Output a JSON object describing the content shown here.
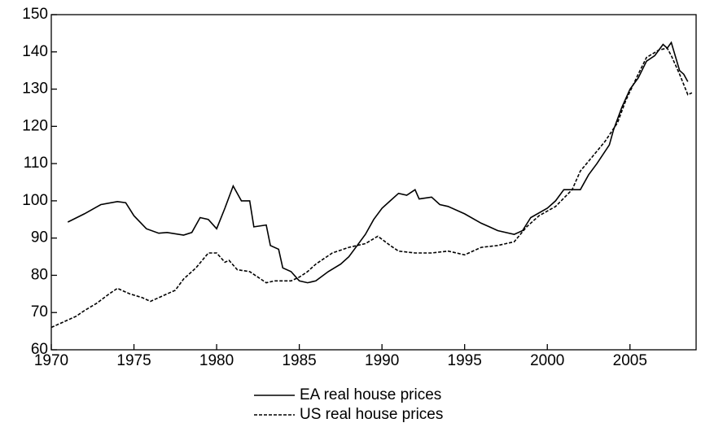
{
  "chart_data": {
    "type": "line",
    "xlim": [
      1970,
      2009
    ],
    "xticks": [
      1970,
      1975,
      1980,
      1985,
      1990,
      1995,
      2000,
      2005
    ],
    "ylim": [
      60,
      150
    ],
    "yticks": [
      60,
      70,
      80,
      90,
      100,
      110,
      120,
      130,
      140,
      150
    ],
    "grid": false,
    "legend": "bottom",
    "series": [
      {
        "name": "EA real house prices",
        "color": "#000000",
        "line_style": "solid",
        "x": [
          1971,
          1972,
          1973,
          1974,
          1974.5,
          1975,
          1975.75,
          1976.5,
          1977,
          1978,
          1978.5,
          1979,
          1979.5,
          1980,
          1980.5,
          1981,
          1981.5,
          1982,
          1982.25,
          1983,
          1983.25,
          1983.75,
          1984,
          1984.5,
          1985,
          1985.5,
          1986,
          1986.75,
          1987.5,
          1988,
          1988.5,
          1989,
          1989.5,
          1990,
          1990.5,
          1991,
          1991.5,
          1992,
          1992.25,
          1993,
          1993.5,
          1994,
          1995,
          1996,
          1996.5,
          1997,
          1998,
          1998.5,
          1999,
          2000,
          2000.5,
          2001,
          2002,
          2002.5,
          2003,
          2003.75,
          2004,
          2004.5,
          2005,
          2005.5,
          2006,
          2006.5,
          2007,
          2007.25,
          2007.5,
          2008,
          2008.25,
          2008.5
        ],
        "values": [
          94.3,
          96.5,
          99,
          99.8,
          99.5,
          96,
          92.5,
          91.3,
          91.5,
          90.8,
          91.5,
          95.5,
          95,
          92.5,
          98,
          104,
          100,
          100,
          93,
          93.5,
          88,
          87,
          82,
          81,
          78.5,
          78,
          78.5,
          81,
          83,
          85,
          88,
          91,
          95,
          98,
          100,
          102,
          101.5,
          103,
          100.5,
          101,
          99,
          98.5,
          96.5,
          94,
          93,
          92,
          91,
          92,
          95.5,
          98,
          100,
          103,
          103,
          107,
          110,
          115,
          119,
          125,
          130,
          133,
          137.5,
          139,
          142,
          141,
          142.5,
          135,
          134,
          132
        ]
      },
      {
        "name": "US real house prices",
        "color": "#000000",
        "line_style": "dashed",
        "x": [
          1970,
          1970.75,
          1971.5,
          1972,
          1972.75,
          1973.5,
          1974,
          1974.75,
          1975.5,
          1976,
          1976.75,
          1977.5,
          1978,
          1978.75,
          1979.5,
          1980,
          1980.5,
          1980.75,
          1981.25,
          1982,
          1982.5,
          1983,
          1983.5,
          1984.5,
          1985,
          1985.5,
          1986,
          1987,
          1988,
          1989,
          1989.75,
          1990.5,
          1991,
          1992,
          1993,
          1994,
          1995,
          1996,
          1997,
          1998,
          1998.75,
          1999.5,
          2000.5,
          2001.5,
          2002,
          2002.75,
          2003.5,
          2004.25,
          2004.75,
          2005.5,
          2006,
          2006.75,
          2007.25,
          2007.5,
          2008,
          2008.5,
          2008.75
        ],
        "values": [
          66,
          67.5,
          69,
          70.5,
          72.5,
          75,
          76.5,
          75,
          74,
          73,
          74.5,
          76,
          79,
          82,
          86,
          86,
          83.5,
          84,
          81.5,
          81,
          79.5,
          78,
          78.5,
          78.5,
          79.5,
          81,
          83,
          86,
          87.5,
          88.5,
          90.5,
          88,
          86.5,
          86,
          86,
          86.5,
          85.5,
          87.5,
          88,
          89,
          93,
          96,
          98.5,
          103,
          108,
          112,
          116,
          121,
          127,
          134,
          138.5,
          140.5,
          141,
          139,
          134,
          128.5,
          129
        ]
      }
    ]
  }
}
